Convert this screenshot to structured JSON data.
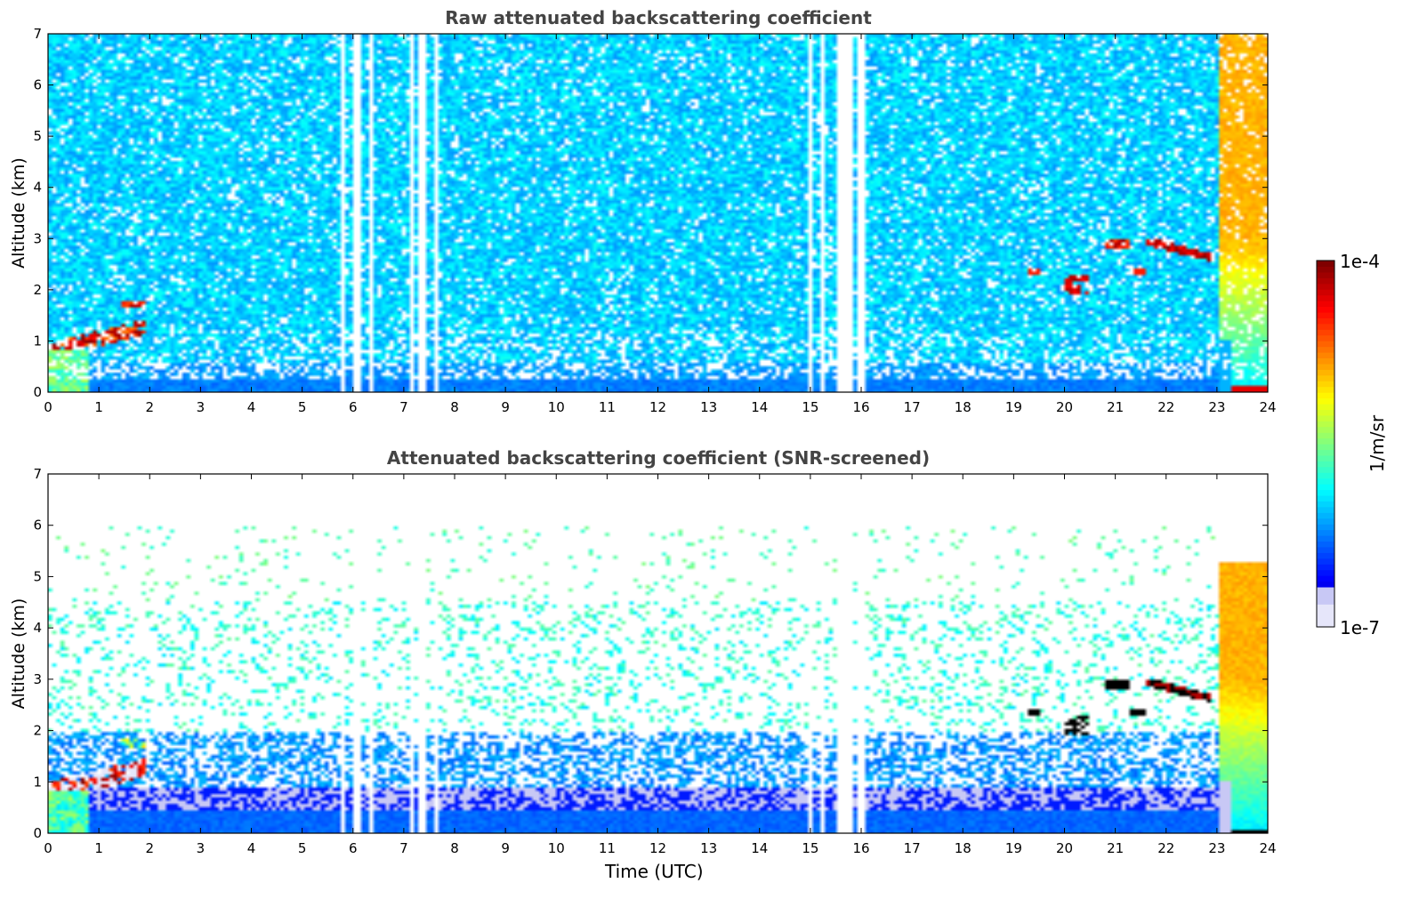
{
  "figure": {
    "colorbar": {
      "label": "1/m/sr",
      "max_label": "1e-4",
      "min_label": "1e-7",
      "colormap": "jet",
      "scale": "log",
      "min": 1e-07,
      "max": 0.0001
    }
  },
  "chart_data": [
    {
      "type": "heatmap",
      "title": "Raw attenuated backscattering coefficient",
      "xlabel": "",
      "ylabel": "Altitude (km)",
      "xlim": [
        0,
        24
      ],
      "ylim": [
        0,
        7
      ],
      "x_ticks": [
        "0",
        "1",
        "2",
        "3",
        "4",
        "5",
        "6",
        "7",
        "8",
        "9",
        "10",
        "11",
        "12",
        "13",
        "14",
        "15",
        "16",
        "17",
        "18",
        "19",
        "20",
        "21",
        "22",
        "23",
        "24"
      ],
      "y_ticks": [
        "0",
        "1",
        "2",
        "3",
        "4",
        "5",
        "6",
        "7"
      ],
      "grid": false,
      "data_gaps_utc": [
        [
          5.8,
          5.83
        ],
        [
          6.0,
          6.2
        ],
        [
          6.3,
          6.4
        ],
        [
          7.1,
          7.2
        ],
        [
          7.3,
          7.4
        ],
        [
          7.6,
          7.65
        ],
        [
          15.0,
          15.05
        ],
        [
          15.2,
          15.3
        ],
        [
          15.55,
          15.8
        ],
        [
          15.95,
          16.05
        ],
        [
          16.3,
          16.35
        ],
        [
          23.58,
          23.62
        ]
      ],
      "features": [
        {
          "name": "low cloud/aerosol",
          "x_range": [
            0,
            1.9
          ],
          "altitude_km": [
            0.8,
            1.75
          ],
          "value_level": "high"
        },
        {
          "name": "boundary layer",
          "x_range": [
            0,
            23
          ],
          "altitude_km": [
            0,
            0.5
          ],
          "value_level": "medium"
        },
        {
          "name": "mid-level cloud",
          "x_range": [
            19.3,
            22.9
          ],
          "altitude_km": [
            1.9,
            3.0
          ],
          "value_level": "high"
        },
        {
          "name": "precipitation/strong signal",
          "x_range": [
            23,
            24
          ],
          "altitude_km": [
            0,
            7
          ],
          "value_level": "medium-high"
        }
      ]
    },
    {
      "type": "heatmap",
      "title": "Attenuated backscattering coefficient (SNR-screened)",
      "xlabel": "Time (UTC)",
      "ylabel": "Altitude (km)",
      "xlim": [
        0,
        24
      ],
      "ylim": [
        0,
        7
      ],
      "x_ticks": [
        "0",
        "1",
        "2",
        "3",
        "4",
        "5",
        "6",
        "7",
        "8",
        "9",
        "10",
        "11",
        "12",
        "13",
        "14",
        "15",
        "16",
        "17",
        "18",
        "19",
        "20",
        "21",
        "22",
        "23",
        "24"
      ],
      "y_ticks": [
        "0",
        "1",
        "2",
        "3",
        "4",
        "5",
        "6",
        "7"
      ],
      "grid": false,
      "features": [
        {
          "name": "low cloud/aerosol",
          "x_range": [
            0,
            1.9
          ],
          "altitude_km": [
            0.7,
            1.8
          ],
          "value_level": "high"
        },
        {
          "name": "boundary layer",
          "x_range": [
            0,
            23
          ],
          "altitude_km": [
            0,
            2.0
          ],
          "value_level": "low-medium"
        },
        {
          "name": "mid-level cloud",
          "x_range": [
            19.3,
            22.9
          ],
          "altitude_km": [
            1.8,
            3.0
          ],
          "value_level": "very high"
        },
        {
          "name": "precipitation/strong signal",
          "x_range": [
            23,
            24
          ],
          "altitude_km": [
            0,
            5.3
          ],
          "value_level": "medium-high"
        }
      ]
    }
  ]
}
